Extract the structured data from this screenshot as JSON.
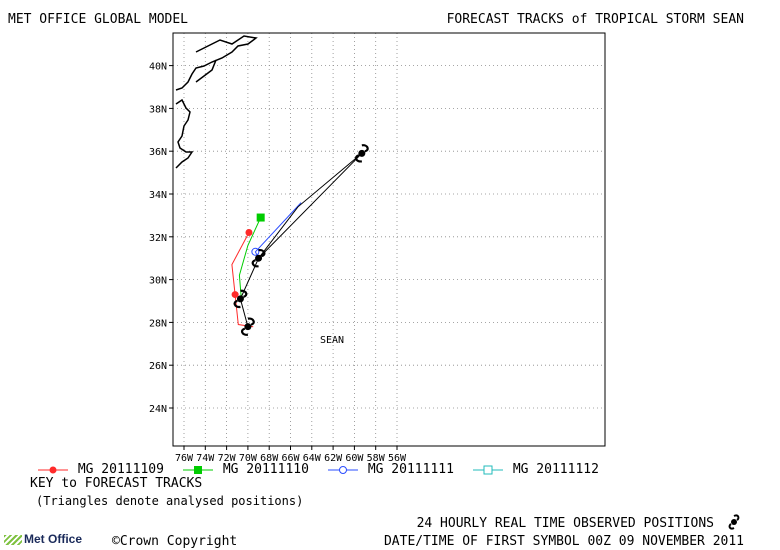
{
  "header": {
    "left_title": "MET OFFICE GLOBAL MODEL",
    "right_title": "FORECAST TRACKS of TROPICAL STORM SEAN"
  },
  "map": {
    "lon_ticks": [
      "76W",
      "74W",
      "72W",
      "70W",
      "68W",
      "66W",
      "64W",
      "62W",
      "60W",
      "58W",
      "56W"
    ],
    "lat_ticks": [
      "24N",
      "26N",
      "28N",
      "30N",
      "32N",
      "34N",
      "36N",
      "38N",
      "40N"
    ],
    "storm_label": "SEAN",
    "colors": {
      "red": "#ff2a2a",
      "green": "#00cc00",
      "blue": "#2a4cff",
      "cyan": "#22bbbb",
      "observed": "#000000"
    },
    "observed_track": [
      [
        -70.0,
        27.8
      ],
      [
        -70.7,
        29.1
      ],
      [
        -69.0,
        31.0
      ],
      [
        -59.3,
        35.9
      ]
    ],
    "forecast_tracks": [
      {
        "key": "red",
        "points": [
          [
            -69.5,
            27.8
          ],
          [
            -70.9,
            27.9
          ],
          [
            -71.2,
            29.3
          ],
          [
            -71.5,
            30.7
          ],
          [
            -69.9,
            32.2
          ]
        ]
      },
      {
        "key": "green",
        "points": [
          [
            -70.6,
            29.0
          ],
          [
            -70.8,
            30.2
          ],
          [
            -70.0,
            31.6
          ],
          [
            -68.8,
            32.9
          ]
        ]
      },
      {
        "key": "blue",
        "points": [
          [
            -69.0,
            31.0
          ],
          [
            -69.3,
            31.3
          ],
          [
            -65.0,
            33.6
          ]
        ]
      },
      {
        "key": "black_extended",
        "points": [
          [
            -69.0,
            31.0
          ],
          [
            -65.3,
            33.4
          ],
          [
            -59.3,
            35.9
          ]
        ]
      }
    ]
  },
  "legend": {
    "items": [
      {
        "label": "MG 20111109",
        "color": "#ff2a2a",
        "marker": "circle-filled"
      },
      {
        "label": "MG 20111110",
        "color": "#00cc00",
        "marker": "square-filled"
      },
      {
        "label": "MG 20111111",
        "color": "#2a4cff",
        "marker": "circle-open"
      },
      {
        "label": "MG 20111112",
        "color": "#22bbbb",
        "marker": "square-open"
      }
    ],
    "key_title": "KEY to FORECAST TRACKS",
    "key_note": "(Triangles denote analysed positions)"
  },
  "footer": {
    "observed_label": "24 HOURLY REAL TIME OBSERVED POSITIONS",
    "date_label": "DATE/TIME OF FIRST SYMBOL 00Z 09 NOVEMBER 2011",
    "copyright": "©Crown Copyright",
    "logo_text": "Met Office"
  }
}
